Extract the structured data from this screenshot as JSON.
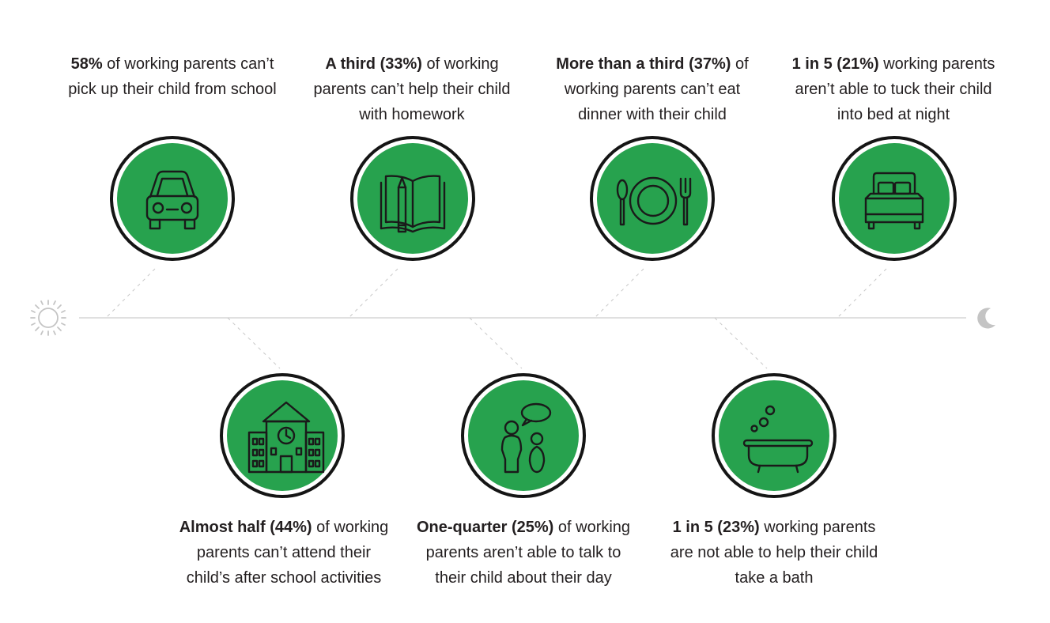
{
  "colors": {
    "accent": "#27a24e",
    "ring": "#151515",
    "text": "#231f20",
    "timeline": "#d6d6d6"
  },
  "timeline": {
    "start_icon": "sun-icon",
    "end_icon": "moon-icon"
  },
  "items": [
    {
      "id": "pickup",
      "bold": "58%",
      "rest": " of working parents can’t pick up their child from school",
      "icon": "car-icon"
    },
    {
      "id": "homework",
      "bold": "A third (33%)",
      "rest": " of working parents can’t help their child with homework",
      "icon": "book-pencil-icon"
    },
    {
      "id": "dinner",
      "bold": "More than a third (37%)",
      "rest": " of working parents can’t eat dinner with their child",
      "icon": "plate-cutlery-icon"
    },
    {
      "id": "bedtime",
      "bold": "1 in 5 (21%)",
      "rest": " working parents aren’t able to tuck their child into bed at night",
      "icon": "bed-icon"
    },
    {
      "id": "activities",
      "bold": "Almost half (44%)",
      "rest": " of working parents can’t attend their child’s after school activities",
      "icon": "school-icon"
    },
    {
      "id": "talk",
      "bold": "One-quarter (25%)",
      "rest": " of working parents aren’t able to talk to their child about their day",
      "icon": "conversation-icon"
    },
    {
      "id": "bath",
      "bold": "1 in 5 (23%)",
      "rest": " working parents are not able to help their child take a bath",
      "icon": "bathtub-icon"
    }
  ]
}
